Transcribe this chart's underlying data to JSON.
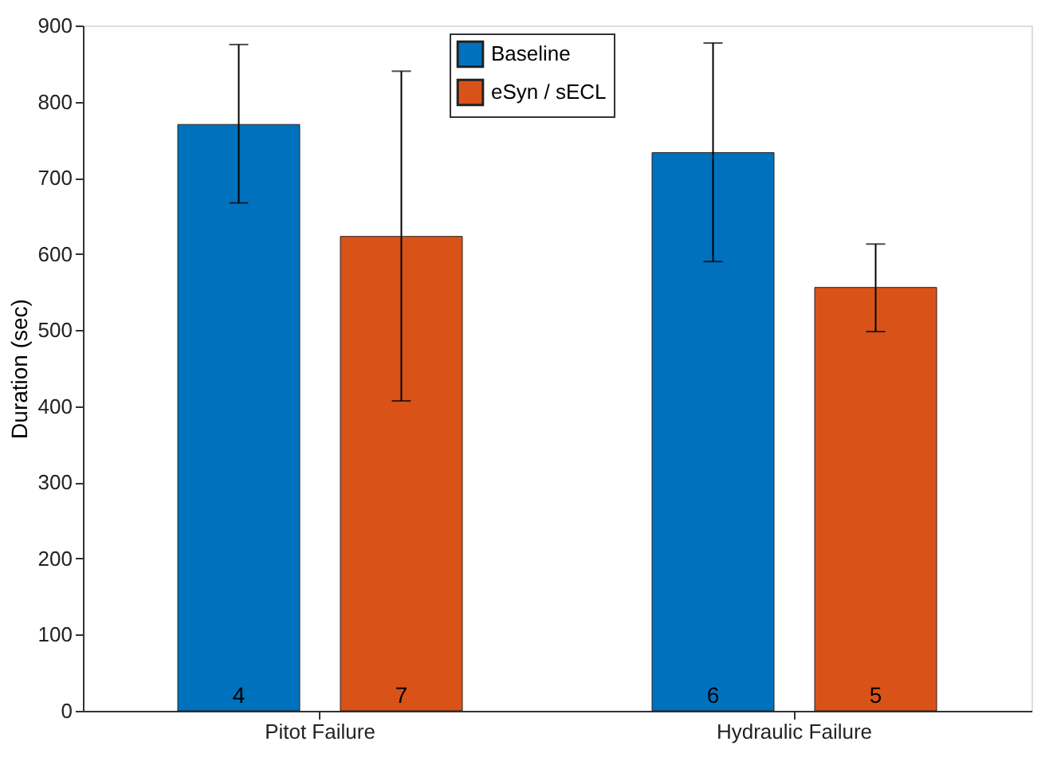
{
  "chart_data": {
    "type": "bar",
    "ylabel": "Duration (sec)",
    "categories": [
      "Pitot Failure",
      "Hydraulic Failure"
    ],
    "series": [
      {
        "name": "Baseline",
        "color": "#0072bd",
        "values": [
          770,
          733
        ],
        "errors": [
          [
            667,
            875
          ],
          [
            590,
            877
          ]
        ]
      },
      {
        "name": "eSyn / sECL",
        "color": "#d95319",
        "values": [
          623,
          556
        ],
        "errors": [
          [
            407,
            840
          ],
          [
            498,
            613
          ]
        ]
      }
    ],
    "annotations": [
      "4",
      "7",
      "6",
      "5"
    ],
    "ylim": [
      0,
      900
    ],
    "yticks": [
      0,
      100,
      200,
      300,
      400,
      500,
      600,
      700,
      800,
      900
    ],
    "grid": false,
    "legend": "top"
  }
}
